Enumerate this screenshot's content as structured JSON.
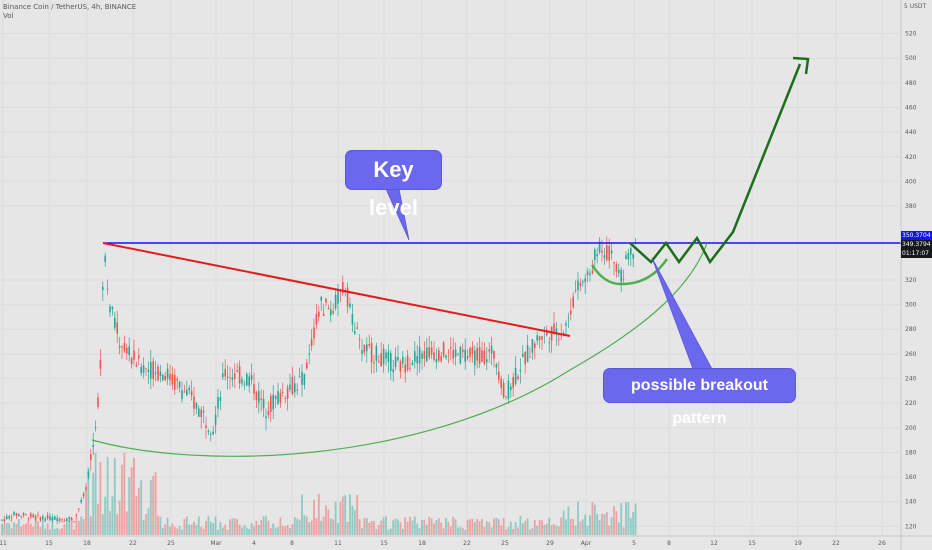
{
  "header": {
    "symbol_line": "Binance Coin / TetherUS, 4h, BINANCE",
    "volume_label": "Vol"
  },
  "price_axis": {
    "unit": "USDT",
    "ticks": [
      "520",
      "500",
      "480",
      "460",
      "440",
      "420",
      "400",
      "380",
      "320",
      "300",
      "280",
      "260",
      "240",
      "220",
      "200",
      "180",
      "160",
      "140",
      "120"
    ],
    "top_label": "5 USDT"
  },
  "time_axis": {
    "ticks": [
      "11",
      "15",
      "18",
      "22",
      "25",
      "Mar",
      "4",
      "8",
      "11",
      "15",
      "18",
      "22",
      "25",
      "29",
      "Apr",
      "5",
      "8",
      "12",
      "15",
      "19",
      "22",
      "26"
    ]
  },
  "price_badges": {
    "level": "350.3704",
    "last": "349.3794",
    "countdown": "01:17:07"
  },
  "annotations": {
    "key_level": "Key level",
    "pattern": "possible breakout pattern"
  },
  "chart_data": {
    "type": "candlestick",
    "title": "Binance Coin / TetherUS, 4h, BINANCE",
    "ylim": [
      115,
      545
    ],
    "key_level": 350.37,
    "last_price": 349.38,
    "descending_trendline": {
      "from": {
        "x": "Feb 19",
        "y": 350
      },
      "to": {
        "x": "Mar 30",
        "y": 276
      }
    },
    "projection_peak": 495,
    "colors": {
      "up": "#26a69a",
      "down": "#ef5350",
      "key_level": "#1414ee",
      "trendline": "#e31b1b",
      "cup_curve": "#4caf50",
      "projection": "#1b6e1b",
      "callout": "#6b68ee"
    }
  }
}
